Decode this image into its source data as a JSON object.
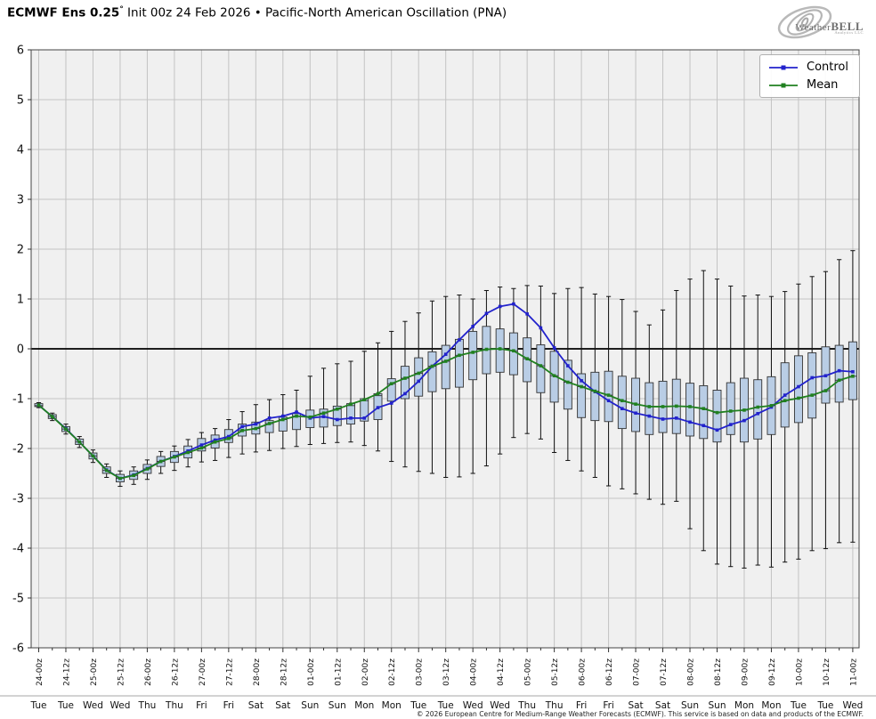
{
  "header": {
    "title_bold": "ECMWF Ens 0.25",
    "title_degree": "°",
    "title_rest": " Init 00z 24 Feb 2026 • Pacific-North American Oscillation (PNA)",
    "logo_weather": "Weather",
    "logo_bell": "BELL",
    "logo_sub": "Analytics LLC"
  },
  "legend": {
    "control_label": "Control",
    "mean_label": "Mean"
  },
  "footer": {
    "copyright": "© 2026 European Centre for Medium-Range Weather Forecasts (ECMWF). This service is based on data and products of the ECMWF."
  },
  "colors": {
    "control": "#2222cc",
    "mean": "#208020",
    "box_fill": "#b9cde5",
    "box_stroke": "#333333",
    "whisker": "#111111",
    "grid": "#c3c3c3",
    "zero_line": "#000000",
    "plot_bg": "#f0f0f0",
    "frame": "#444444"
  },
  "chart_data": {
    "type": "box-whisker ensemble plume with line series",
    "title": "ECMWF Ens 0.25° Init 00z 24 Feb 2026 • Pacific-North American Oscillation (PNA)",
    "xlabel": "",
    "ylabel": "",
    "ylim": [
      -6,
      6
    ],
    "yticks": [
      6,
      5,
      4,
      3,
      2,
      1,
      0,
      -1,
      -2,
      -3,
      -4,
      -5,
      -6
    ],
    "x_step_hours": 6,
    "grid": "on",
    "legend_position": "upper right",
    "times": [
      "24-00z",
      "24-06z",
      "24-12z",
      "24-18z",
      "25-00z",
      "25-06z",
      "25-12z",
      "25-18z",
      "26-00z",
      "26-06z",
      "26-12z",
      "26-18z",
      "27-00z",
      "27-06z",
      "27-12z",
      "27-18z",
      "28-00z",
      "28-06z",
      "28-12z",
      "28-18z",
      "01-00z",
      "01-06z",
      "01-12z",
      "01-18z",
      "02-00z",
      "02-06z",
      "02-12z",
      "02-18z",
      "03-00z",
      "03-06z",
      "03-12z",
      "03-18z",
      "04-00z",
      "04-06z",
      "04-12z",
      "04-18z",
      "05-00z",
      "05-06z",
      "05-12z",
      "05-18z",
      "06-00z",
      "06-06z",
      "06-12z",
      "06-18z",
      "07-00z",
      "07-06z",
      "07-12z",
      "07-18z",
      "08-00z",
      "08-06z",
      "08-12z",
      "08-18z",
      "09-00z",
      "09-06z",
      "09-12z",
      "09-18z",
      "10-00z",
      "10-06z",
      "10-12z",
      "10-18z",
      "11-00z"
    ],
    "day_labels": [
      "Tue",
      "Tue",
      "Wed",
      "Wed",
      "Thu",
      "Thu",
      "Fri",
      "Fri",
      "Sat",
      "Sat",
      "Sun",
      "Sun",
      "Mon",
      "Mon",
      "Tue",
      "Tue",
      "Wed",
      "Wed",
      "Thu",
      "Thu",
      "Fri",
      "Fri",
      "Sat",
      "Sat",
      "Sun",
      "Sun",
      "Mon",
      "Mon",
      "Tue",
      "Tue",
      "Wed"
    ],
    "series": [
      {
        "name": "Control",
        "color": "#2222cc",
        "values": [
          -1.13,
          -1.36,
          -1.6,
          -1.87,
          -2.15,
          -2.43,
          -2.6,
          -2.53,
          -2.4,
          -2.26,
          -2.16,
          -2.05,
          -1.93,
          -1.83,
          -1.76,
          -1.56,
          -1.51,
          -1.39,
          -1.35,
          -1.27,
          -1.39,
          -1.36,
          -1.42,
          -1.39,
          -1.39,
          -1.18,
          -1.09,
          -0.9,
          -0.65,
          -0.35,
          -0.11,
          0.18,
          0.45,
          0.71,
          0.85,
          0.9,
          0.7,
          0.42,
          0.02,
          -0.34,
          -0.64,
          -0.86,
          -1.04,
          -1.2,
          -1.29,
          -1.35,
          -1.41,
          -1.39,
          -1.47,
          -1.54,
          -1.63,
          -1.52,
          -1.44,
          -1.3,
          -1.17,
          -0.93,
          -0.76,
          -0.58,
          -0.54,
          -0.44,
          -0.46
        ]
      },
      {
        "name": "Mean",
        "color": "#208020",
        "values": [
          -1.13,
          -1.36,
          -1.61,
          -1.87,
          -2.15,
          -2.44,
          -2.6,
          -2.54,
          -2.41,
          -2.26,
          -2.17,
          -2.08,
          -1.99,
          -1.87,
          -1.8,
          -1.64,
          -1.6,
          -1.5,
          -1.42,
          -1.35,
          -1.37,
          -1.29,
          -1.21,
          -1.11,
          -1.02,
          -0.9,
          -0.7,
          -0.59,
          -0.49,
          -0.35,
          -0.25,
          -0.13,
          -0.07,
          -0.01,
          0.0,
          -0.04,
          -0.2,
          -0.34,
          -0.54,
          -0.67,
          -0.76,
          -0.85,
          -0.93,
          -1.04,
          -1.11,
          -1.16,
          -1.16,
          -1.15,
          -1.16,
          -1.2,
          -1.28,
          -1.25,
          -1.23,
          -1.17,
          -1.14,
          -1.04,
          -0.99,
          -0.93,
          -0.84,
          -0.63,
          -0.55
        ]
      }
    ],
    "boxes": {
      "q3": [
        -1.1,
        -1.32,
        -1.56,
        -1.81,
        -2.09,
        -2.37,
        -2.52,
        -2.45,
        -2.32,
        -2.16,
        -2.06,
        -1.95,
        -1.8,
        -1.73,
        -1.62,
        -1.51,
        -1.47,
        -1.44,
        -1.37,
        -1.3,
        -1.23,
        -1.21,
        -1.15,
        -1.1,
        -1.0,
        -0.9,
        -0.6,
        -0.35,
        -0.18,
        -0.06,
        0.07,
        0.19,
        0.35,
        0.45,
        0.4,
        0.32,
        0.22,
        0.08,
        -0.05,
        -0.23,
        -0.5,
        -0.47,
        -0.45,
        -0.55,
        -0.59,
        -0.68,
        -0.65,
        -0.61,
        -0.69,
        -0.74,
        -0.83,
        -0.68,
        -0.59,
        -0.62,
        -0.56,
        -0.28,
        -0.14,
        -0.08,
        0.04,
        0.07,
        0.14
      ],
      "q1": [
        -1.16,
        -1.4,
        -1.66,
        -1.92,
        -2.21,
        -2.5,
        -2.67,
        -2.62,
        -2.5,
        -2.36,
        -2.28,
        -2.19,
        -2.05,
        -1.99,
        -1.88,
        -1.75,
        -1.71,
        -1.68,
        -1.65,
        -1.62,
        -1.58,
        -1.57,
        -1.54,
        -1.51,
        -1.45,
        -1.42,
        -1.05,
        -1.0,
        -0.95,
        -0.86,
        -0.8,
        -0.77,
        -0.62,
        -0.5,
        -0.47,
        -0.52,
        -0.66,
        -0.88,
        -1.07,
        -1.21,
        -1.38,
        -1.44,
        -1.46,
        -1.6,
        -1.66,
        -1.72,
        -1.68,
        -1.7,
        -1.75,
        -1.8,
        -1.87,
        -1.72,
        -1.87,
        -1.81,
        -1.72,
        -1.57,
        -1.48,
        -1.39,
        -1.09,
        -1.07,
        -1.02
      ],
      "whisker_high": [
        -1.08,
        -1.29,
        -1.51,
        -1.76,
        -2.03,
        -2.31,
        -2.45,
        -2.37,
        -2.23,
        -2.06,
        -1.95,
        -1.82,
        -1.68,
        -1.6,
        -1.42,
        -1.26,
        -1.12,
        -1.02,
        -0.92,
        -0.83,
        -0.55,
        -0.39,
        -0.3,
        -0.25,
        -0.05,
        0.12,
        0.35,
        0.55,
        0.72,
        0.96,
        1.05,
        1.08,
        1.0,
        1.17,
        1.24,
        1.21,
        1.27,
        1.26,
        1.11,
        1.21,
        1.23,
        1.1,
        1.05,
        0.99,
        0.75,
        0.48,
        0.78,
        1.17,
        1.4,
        1.57,
        1.4,
        1.26,
        1.06,
        1.08,
        1.05,
        1.15,
        1.3,
        1.45,
        1.55,
        1.79,
        1.97
      ],
      "whisker_low": [
        -1.18,
        -1.44,
        -1.71,
        -1.98,
        -2.28,
        -2.58,
        -2.76,
        -2.72,
        -2.62,
        -2.5,
        -2.44,
        -2.37,
        -2.27,
        -2.24,
        -2.18,
        -2.11,
        -2.07,
        -2.04,
        -2.0,
        -1.96,
        -1.92,
        -1.9,
        -1.88,
        -1.87,
        -1.94,
        -2.05,
        -2.26,
        -2.37,
        -2.46,
        -2.5,
        -2.58,
        -2.57,
        -2.5,
        -2.35,
        -2.11,
        -1.78,
        -1.7,
        -1.81,
        -2.08,
        -2.24,
        -2.45,
        -2.58,
        -2.75,
        -2.81,
        -2.91,
        -3.02,
        -3.12,
        -3.06,
        -3.61,
        -4.05,
        -4.32,
        -4.37,
        -4.4,
        -4.34,
        -4.38,
        -4.28,
        -4.22,
        -4.05,
        -4.01,
        -3.89,
        -3.88
      ]
    }
  }
}
